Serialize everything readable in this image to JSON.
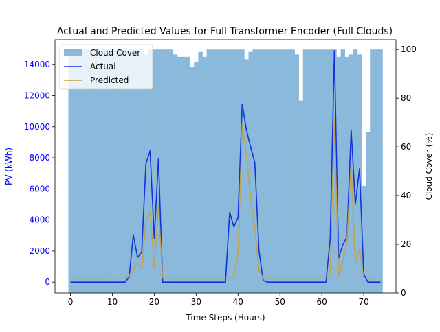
{
  "chart_data": {
    "type": "line",
    "title": "Actual and Predicted Values for Full Transformer Encoder (Full Clouds)",
    "xlabel": "Time Steps (Hours)",
    "ylabel_left": "PV (kWh)",
    "ylabel_right": "Cloud Cover (%)",
    "xlim": [
      -3.7,
      77.7
    ],
    "ylim_left": [
      -700,
      15600
    ],
    "ylim_right": [
      0,
      104
    ],
    "x_ticks": [
      0,
      10,
      20,
      30,
      40,
      50,
      60,
      70
    ],
    "y_left_ticks": [
      0,
      2000,
      4000,
      6000,
      8000,
      10000,
      12000,
      14000
    ],
    "y_right_ticks": [
      0,
      20,
      40,
      60,
      80,
      100
    ],
    "legend_position": "upper left",
    "colors": {
      "cloud": "#8ab9db",
      "actual": "#1133dd",
      "predicted": "#c8a03c",
      "left_axis_text": "#0000ff"
    },
    "series": [
      {
        "name": "Cloud Cover",
        "kind": "bar",
        "x": [
          0,
          1,
          2,
          3,
          4,
          5,
          6,
          7,
          8,
          9,
          10,
          11,
          12,
          13,
          14,
          15,
          16,
          17,
          18,
          19,
          20,
          21,
          22,
          23,
          24,
          25,
          26,
          27,
          28,
          29,
          30,
          31,
          32,
          33,
          34,
          35,
          36,
          37,
          38,
          39,
          40,
          41,
          42,
          43,
          44,
          45,
          46,
          47,
          48,
          49,
          50,
          51,
          52,
          53,
          54,
          55,
          56,
          57,
          58,
          59,
          60,
          61,
          62,
          63,
          64,
          65,
          66,
          67,
          68,
          69,
          70,
          71,
          72,
          73,
          74
        ],
        "values": [
          100,
          100,
          100,
          100,
          100,
          100,
          100,
          100,
          100,
          100,
          100,
          100,
          100,
          100,
          100,
          100,
          100,
          100,
          98,
          100,
          100,
          100,
          100,
          100,
          100,
          98,
          97,
          97,
          97,
          93,
          95,
          99,
          97,
          100,
          100,
          100,
          100,
          100,
          100,
          100,
          100,
          100,
          96,
          99,
          100,
          100,
          100,
          100,
          100,
          100,
          100,
          100,
          100,
          100,
          98,
          79,
          100,
          100,
          100,
          100,
          100,
          100,
          100,
          100,
          97,
          100,
          97,
          98,
          100,
          98,
          44,
          66,
          100,
          100,
          100
        ]
      },
      {
        "name": "Actual",
        "kind": "line",
        "x": [
          0,
          1,
          2,
          3,
          4,
          5,
          6,
          7,
          8,
          9,
          10,
          11,
          12,
          13,
          14,
          15,
          16,
          17,
          18,
          19,
          20,
          21,
          22,
          23,
          24,
          25,
          26,
          27,
          28,
          29,
          30,
          31,
          32,
          33,
          34,
          35,
          36,
          37,
          38,
          39,
          40,
          41,
          42,
          43,
          44,
          45,
          46,
          47,
          48,
          49,
          50,
          51,
          52,
          53,
          54,
          55,
          56,
          57,
          58,
          59,
          60,
          61,
          62,
          63,
          64,
          65,
          66,
          67,
          68,
          69,
          70,
          71,
          72,
          73,
          74
        ],
        "values": [
          0,
          0,
          0,
          0,
          0,
          0,
          0,
          0,
          0,
          0,
          0,
          0,
          0,
          0,
          300,
          3050,
          1600,
          1900,
          7600,
          8450,
          2800,
          7950,
          0,
          0,
          0,
          0,
          0,
          0,
          0,
          0,
          0,
          0,
          0,
          0,
          0,
          0,
          0,
          0,
          4500,
          3550,
          4150,
          11450,
          9800,
          8700,
          7700,
          2000,
          100,
          0,
          0,
          0,
          0,
          0,
          0,
          0,
          0,
          0,
          0,
          0,
          0,
          0,
          0,
          0,
          2800,
          14900,
          1550,
          2400,
          2900,
          9800,
          5000,
          7300,
          500,
          0,
          0,
          0,
          0
        ]
      },
      {
        "name": "Predicted",
        "kind": "line",
        "x": [
          0,
          1,
          2,
          3,
          4,
          5,
          6,
          7,
          8,
          9,
          10,
          11,
          12,
          13,
          14,
          15,
          16,
          17,
          18,
          19,
          20,
          21,
          22,
          23,
          24,
          25,
          26,
          27,
          28,
          29,
          30,
          31,
          32,
          33,
          34,
          35,
          36,
          37,
          38,
          39,
          40,
          41,
          42,
          43,
          44,
          45,
          46,
          47,
          48,
          49,
          50,
          51,
          52,
          53,
          54,
          55,
          56,
          57,
          58,
          59,
          60,
          61,
          62,
          63,
          64,
          65,
          66,
          67,
          68,
          69,
          70,
          71,
          72,
          73,
          74
        ],
        "values": [
          250,
          250,
          250,
          250,
          250,
          250,
          250,
          250,
          250,
          250,
          250,
          250,
          250,
          250,
          400,
          800,
          1250,
          750,
          3950,
          4550,
          950,
          4850,
          250,
          250,
          250,
          250,
          250,
          250,
          250,
          250,
          250,
          250,
          250,
          250,
          250,
          250,
          250,
          250,
          300,
          300,
          1800,
          10150,
          8200,
          5400,
          3450,
          750,
          250,
          250,
          250,
          250,
          250,
          250,
          250,
          250,
          250,
          250,
          250,
          250,
          250,
          250,
          250,
          250,
          400,
          10600,
          350,
          1300,
          2650,
          7600,
          1200,
          2100,
          250,
          250,
          250,
          250,
          250
        ]
      }
    ]
  }
}
